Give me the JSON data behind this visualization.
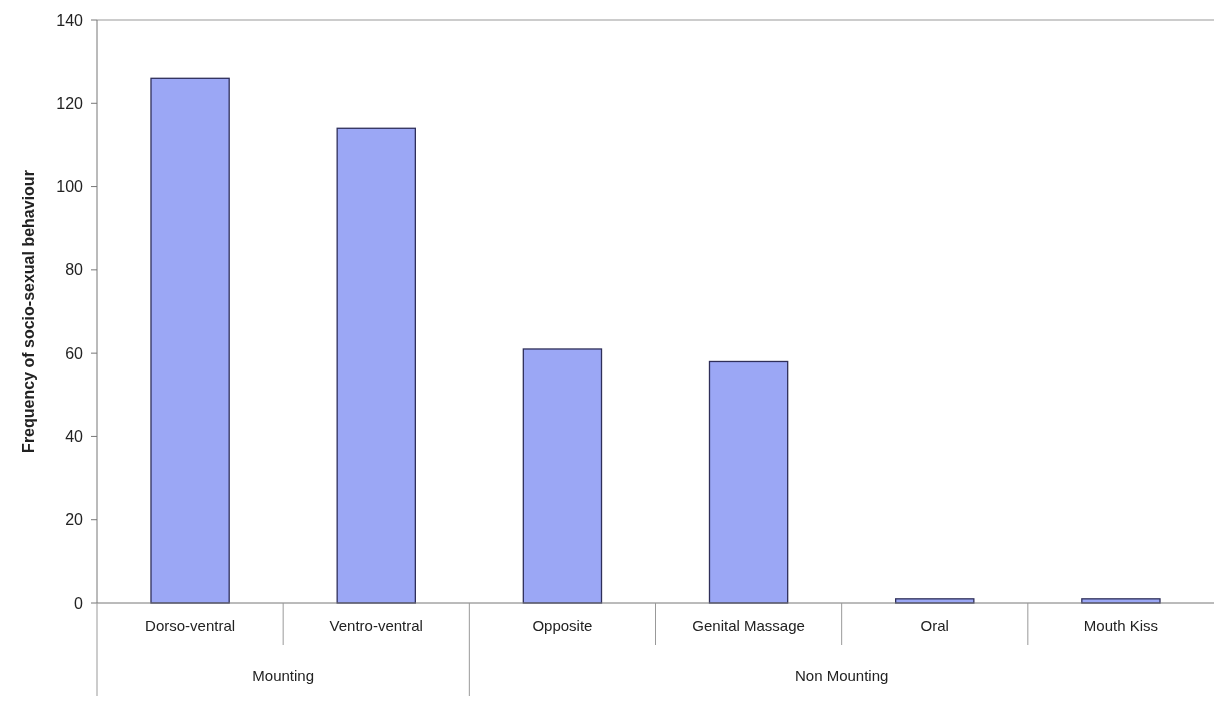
{
  "chart_data": {
    "type": "bar",
    "ylabel": "Frequency of socio-sexual behaviour",
    "categories": [
      "Dorso-ventral",
      "Ventro-ventral",
      "Opposite",
      "Genital Massage",
      "Oral",
      "Mouth Kiss"
    ],
    "values": [
      126,
      114,
      61,
      58,
      1,
      1
    ],
    "color": "#9ba7f5",
    "ylim": [
      0,
      140
    ],
    "yticks": [
      0,
      20,
      40,
      60,
      80,
      100,
      120,
      140
    ],
    "grid": false,
    "annotations": [
      "Mounting",
      "Non Mounting"
    ]
  }
}
